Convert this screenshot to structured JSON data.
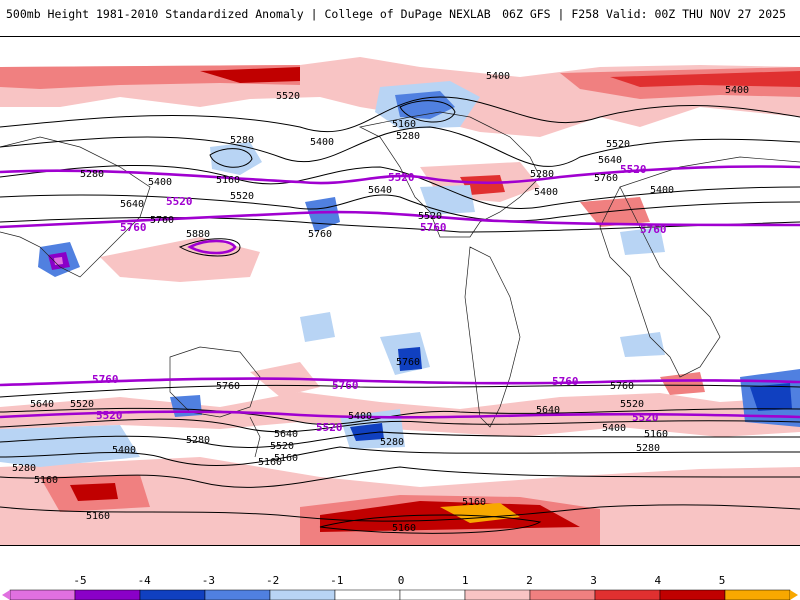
{
  "header": {
    "title_left": "500mb Height 1981-2010 Standardized Anomaly | College of DuPage NEXLAB",
    "title_right": "06Z GFS | F258 Valid: 00Z THU NOV 27 2025"
  },
  "map": {
    "height_contour_labels": [
      "5400",
      "5520",
      "5280",
      "5400",
      "5160",
      "5280",
      "5520",
      "5640",
      "5760",
      "5400",
      "5520",
      "5640",
      "5760",
      "5880",
      "5160",
      "5280",
      "5400",
      "5520",
      "5640",
      "5760",
      "5280",
      "5160",
      "5400",
      "5520",
      "5640",
      "5760",
      "5280",
      "5400",
      "5160",
      "5280",
      "5160",
      "5640",
      "5520",
      "5400",
      "5280",
      "5160",
      "5280",
      "5520",
      "5640",
      "5760",
      "5400",
      "5160",
      "5280",
      "5280"
    ],
    "highlighted_contour_labels": [
      "5520",
      "5760",
      "5520",
      "5760",
      "5520",
      "5760",
      "5760",
      "5520",
      "5760",
      "5520",
      "5520",
      "5760",
      "5520",
      "5760"
    ],
    "anomaly_colors": {
      "neg5": "#e070e0",
      "neg4": "#8a00c8",
      "neg3": "#1040c0",
      "neg2": "#5080e0",
      "neg1": "#b8d4f4",
      "zero": "#ffffff",
      "pos1": "#f8c4c4",
      "pos2": "#f08080",
      "pos3": "#e03030",
      "pos4": "#c00000",
      "pos5": "#f8a800"
    },
    "highlight_contour_color": "#a000d0"
  },
  "colorbar": {
    "ticks": [
      "-5",
      "-4",
      "-3",
      "-2",
      "-1",
      "0",
      "1",
      "2",
      "3",
      "4",
      "5"
    ]
  }
}
